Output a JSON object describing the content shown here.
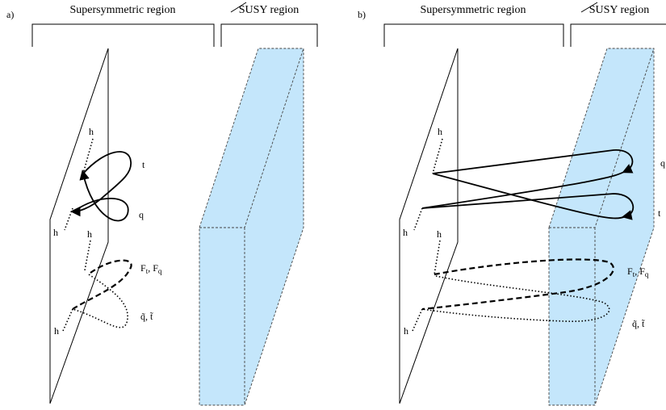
{
  "panel_a": {
    "tag": "a)",
    "region_left": "Supersymmetric region",
    "region_right": "SUSY region",
    "labels": {
      "h1": "h",
      "h2": "h",
      "h3": "h",
      "h4": "h",
      "t": "t",
      "q": "q",
      "F": "F",
      "F_sub1": "t",
      "F_mid": ", F",
      "F_sub2": "q",
      "sq": "q̃, t̃"
    }
  },
  "panel_b": {
    "tag": "b)",
    "region_left": "Supersymmetric region",
    "region_right": "SUSY region",
    "labels": {
      "h1": "h",
      "h2": "h",
      "h3": "h",
      "h4": "h",
      "q": "q",
      "t": "t",
      "F": "F",
      "F_sub1": "t",
      "F_mid": ", F",
      "F_sub2": "q",
      "sq": "q̃, t̃"
    }
  },
  "colors": {
    "susy_breaking_region": "#c4e6fb",
    "lines": "#000000"
  }
}
